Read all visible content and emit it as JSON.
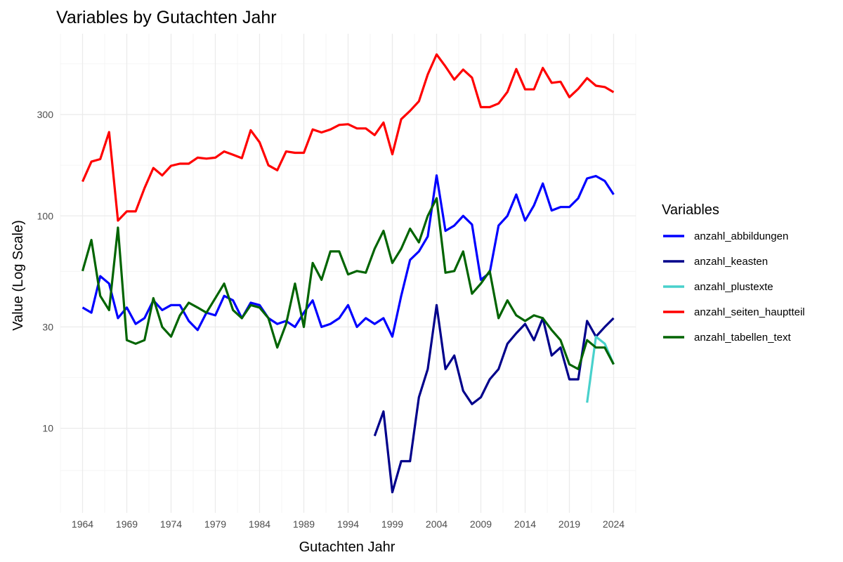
{
  "chart_data": {
    "type": "line",
    "title": "Variables by Gutachten Jahr",
    "xlabel": "Gutachten Jahr",
    "ylabel": "Value (Log Scale)",
    "y_scale": "log10",
    "xlim": [
      1961.5,
      2026.5
    ],
    "ylim": [
      4,
      720
    ],
    "x_ticks": [
      1964,
      1969,
      1974,
      1979,
      1984,
      1989,
      1994,
      1999,
      2004,
      2009,
      2014,
      2019,
      2024
    ],
    "y_ticks": [
      10,
      30,
      100,
      300
    ],
    "grid": true,
    "legend": {
      "title": "Variables",
      "position": "right"
    },
    "series": [
      {
        "name": "anzahl_abbildungen",
        "color": "#0000ff",
        "x": [
          1964,
          1965,
          1966,
          1967,
          1968,
          1969,
          1970,
          1971,
          1972,
          1973,
          1974,
          1975,
          1976,
          1977,
          1978,
          1979,
          1980,
          1981,
          1982,
          1983,
          1984,
          1985,
          1986,
          1987,
          1988,
          1989,
          1990,
          1991,
          1992,
          1993,
          1994,
          1995,
          1996,
          1997,
          1998,
          1999,
          2000,
          2001,
          2002,
          2003,
          2004,
          2005,
          2006,
          2007,
          2008,
          2009,
          2010,
          2011,
          2012,
          2013,
          2014,
          2015,
          2016,
          2017,
          2018,
          2019,
          2020,
          2021,
          2022,
          2023,
          2024
        ],
        "y": [
          37,
          35,
          52,
          48,
          33,
          37,
          31,
          33,
          40,
          36,
          38,
          38,
          32,
          29,
          35,
          34,
          42,
          40,
          33,
          39,
          38,
          33,
          31,
          32,
          30,
          35,
          40,
          30,
          31,
          33,
          38,
          30,
          33,
          31,
          33,
          27,
          42,
          62,
          68,
          80,
          155,
          85,
          90,
          100,
          91,
          50,
          54,
          90,
          100,
          126,
          95,
          112,
          142,
          106,
          110,
          110,
          121,
          150,
          154,
          146,
          126
        ]
      },
      {
        "name": "anzahl_keasten",
        "color": "#00008b",
        "x": [
          1997,
          1998,
          1999,
          2000,
          2001,
          2002,
          2003,
          2004,
          2005,
          2006,
          2007,
          2008,
          2009,
          2010,
          2011,
          2012,
          2013,
          2014,
          2015,
          2016,
          2017,
          2018,
          2019,
          2020,
          2021,
          2022,
          2023,
          2024
        ],
        "y": [
          9.2,
          12,
          5,
          7,
          7,
          14,
          19,
          38,
          19,
          22,
          15,
          13,
          14,
          17,
          19,
          25,
          28,
          31,
          26,
          33,
          22,
          24,
          17,
          17,
          32,
          27,
          30,
          33
        ]
      },
      {
        "name": "anzahl_plustexte",
        "color": "#48d1cc",
        "x": [
          2021,
          2022,
          2023,
          2024
        ],
        "y": [
          13.2,
          27,
          25,
          20
        ]
      },
      {
        "name": "anzahl_seiten_hauptteil",
        "color": "#ff0000",
        "x": [
          1964,
          1965,
          1966,
          1967,
          1968,
          1969,
          1970,
          1971,
          1972,
          1973,
          1974,
          1975,
          1976,
          1977,
          1978,
          1979,
          1980,
          1981,
          1982,
          1983,
          1984,
          1985,
          1986,
          1987,
          1988,
          1989,
          1990,
          1991,
          1992,
          1993,
          1994,
          1995,
          1996,
          1997,
          1998,
          1999,
          2000,
          2001,
          2002,
          2003,
          2004,
          2005,
          2006,
          2007,
          2008,
          2009,
          2010,
          2011,
          2012,
          2013,
          2014,
          2015,
          2016,
          2017,
          2018,
          2019,
          2020,
          2021,
          2022,
          2023,
          2024
        ],
        "y": [
          145,
          180,
          185,
          248,
          95,
          105,
          105,
          135,
          168,
          155,
          172,
          176,
          176,
          188,
          186,
          188,
          201,
          194,
          187,
          253,
          222,
          173,
          164,
          201,
          198,
          198,
          255,
          247,
          255,
          268,
          270,
          258,
          258,
          240,
          275,
          195,
          285,
          312,
          346,
          463,
          575,
          505,
          438,
          488,
          447,
          325,
          325,
          338,
          383,
          491,
          394,
          394,
          497,
          423,
          428,
          362,
          396,
          445,
          410,
          404,
          382
        ]
      },
      {
        "name": "anzahl_tabellen_text",
        "color": "#006400",
        "x": [
          1964,
          1965,
          1966,
          1967,
          1968,
          1969,
          1970,
          1971,
          1972,
          1973,
          1974,
          1975,
          1976,
          1977,
          1978,
          1979,
          1980,
          1981,
          1982,
          1983,
          1984,
          1985,
          1986,
          1987,
          1988,
          1989,
          1990,
          1991,
          1992,
          1993,
          1994,
          1995,
          1996,
          1997,
          1998,
          1999,
          2000,
          2001,
          2002,
          2003,
          2004,
          2005,
          2006,
          2007,
          2008,
          2009,
          2010,
          2011,
          2012,
          2013,
          2014,
          2015,
          2016,
          2017,
          2018,
          2019,
          2020,
          2021,
          2022,
          2023,
          2024
        ],
        "y": [
          55,
          77,
          42,
          36,
          88,
          26,
          25,
          26,
          41,
          30,
          27,
          34,
          39,
          37,
          35,
          41,
          48,
          36,
          33,
          38,
          37,
          33,
          24,
          31,
          48,
          30,
          60,
          50,
          68,
          68,
          53,
          55,
          54,
          70,
          85,
          60,
          70,
          87,
          75,
          100,
          121,
          54,
          55,
          68,
          43,
          48,
          55,
          33,
          40,
          34,
          32,
          34,
          33,
          29,
          26,
          20,
          19,
          26,
          24,
          24,
          20
        ]
      }
    ]
  }
}
